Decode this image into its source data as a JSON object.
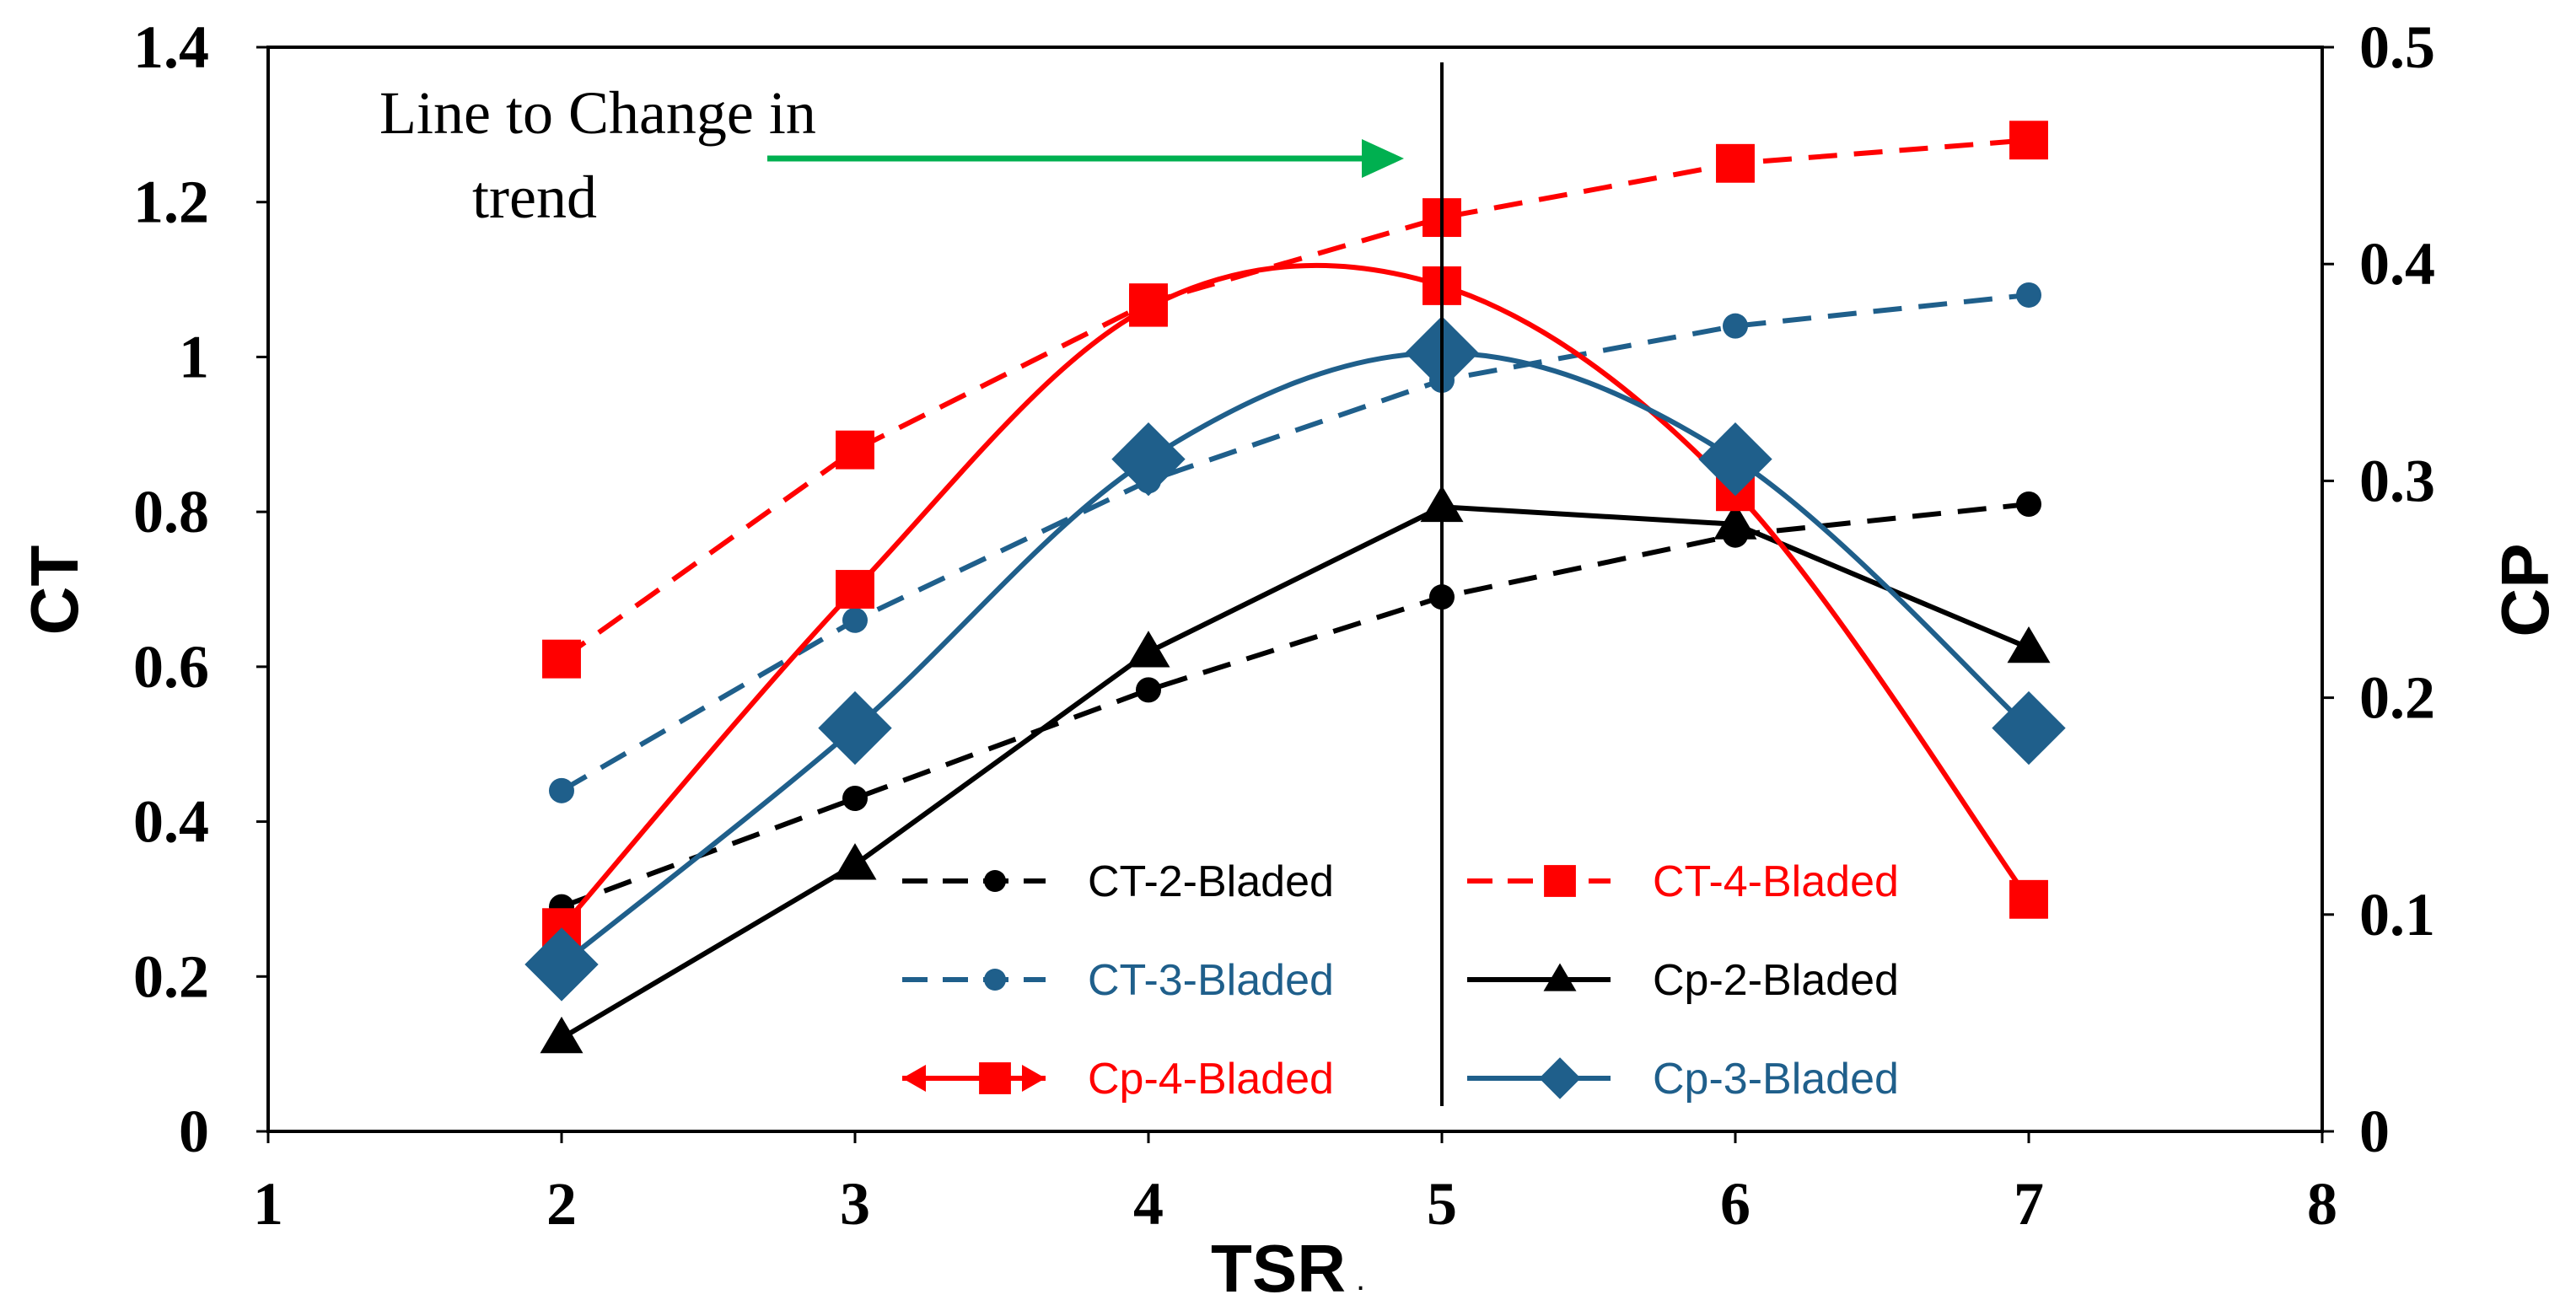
{
  "chart_data": {
    "type": "line",
    "xlabel": "TSR",
    "xlabel_suffix": ".",
    "ylabel_left": "CT",
    "ylabel_right": "CP",
    "xlim": [
      1,
      8
    ],
    "ylim_left": [
      0,
      1.4
    ],
    "ylim_right": [
      0,
      0.5
    ],
    "x_ticks": [
      "1",
      "2",
      "3",
      "4",
      "5",
      "6",
      "7",
      "8"
    ],
    "y_left_ticks": [
      "0",
      "0.2",
      "0.4",
      "0.6",
      "0.8",
      "1",
      "1.2",
      "1.4"
    ],
    "y_right_ticks": [
      "0",
      "0.1",
      "0.2",
      "0.3",
      "0.4",
      "0.5"
    ],
    "x": [
      2,
      3,
      4,
      5,
      6,
      7
    ],
    "series": [
      {
        "name": "CT-2-Bladed",
        "axis": "left",
        "color": "#000000",
        "dash": true,
        "smooth": false,
        "marker": "circle",
        "values": [
          0.29,
          0.43,
          0.57,
          0.69,
          0.77,
          0.81
        ]
      },
      {
        "name": "CT-4-Bladed",
        "axis": "left",
        "color": "#ff0000",
        "dash": true,
        "smooth": false,
        "marker": "square",
        "values": [
          0.61,
          0.88,
          1.07,
          1.18,
          1.25,
          1.28
        ]
      },
      {
        "name": "CT-3-Bladed",
        "axis": "left",
        "color": "#1f5f8b",
        "dash": true,
        "smooth": false,
        "marker": "circle",
        "values": [
          0.44,
          0.66,
          0.84,
          0.97,
          1.04,
          1.08
        ]
      },
      {
        "name": "Cp-2-Bladed",
        "axis": "right",
        "color": "#000000",
        "dash": false,
        "smooth": false,
        "marker": "triangle",
        "values": [
          0.043,
          0.123,
          0.221,
          0.288,
          0.28,
          0.223
        ]
      },
      {
        "name": "Cp-4-Bladed",
        "axis": "right",
        "color": "#ff0000",
        "dash": false,
        "smooth": true,
        "marker": "square",
        "values": [
          0.094,
          0.25,
          0.38,
          0.39,
          0.295,
          0.107
        ]
      },
      {
        "name": "Cp-3-Bladed",
        "axis": "right",
        "color": "#1f5f8b",
        "dash": false,
        "smooth": true,
        "marker": "diamond",
        "values": [
          0.077,
          0.186,
          0.31,
          0.359,
          0.31,
          0.186
        ]
      }
    ],
    "vertical_line_x": 5,
    "annotation": {
      "lines": [
        "Line to Change in",
        "trend"
      ],
      "arrow_color": "#00b050"
    },
    "legend_placement": "bottom-right"
  }
}
